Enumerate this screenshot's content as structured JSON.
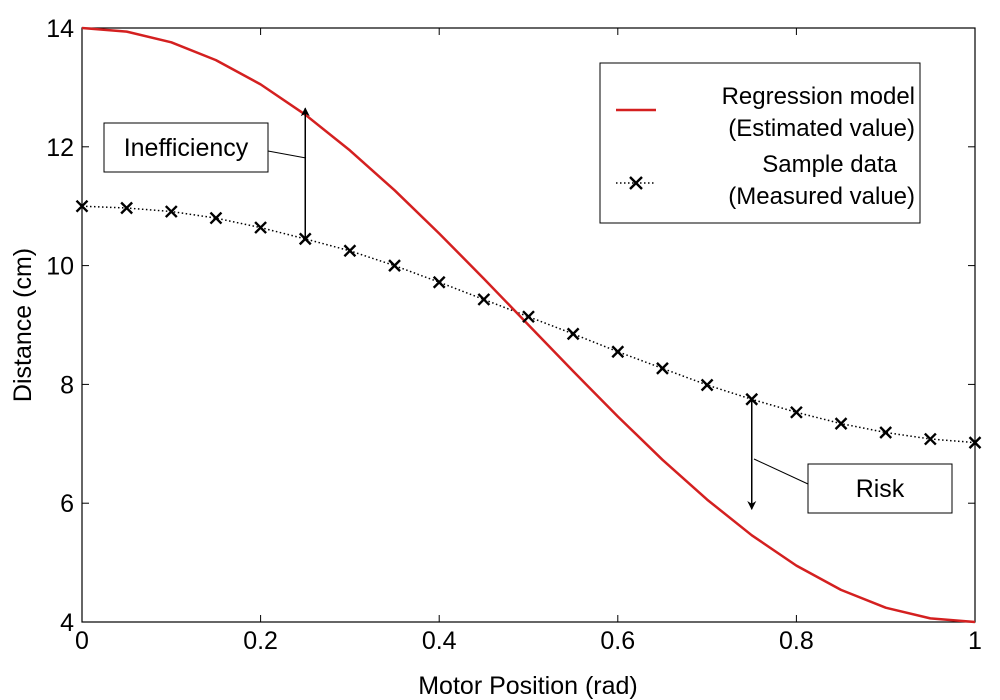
{
  "colors": {
    "regression": "#d42020",
    "sample": "#000000",
    "axis": "#000000",
    "background": "#ffffff"
  },
  "chart_data": {
    "type": "line",
    "xlabel": "Motor Position (rad)",
    "ylabel": "Distance (cm)",
    "xlim": [
      0,
      1
    ],
    "ylim": [
      4,
      14
    ],
    "x_ticks": [
      "0",
      "0.2",
      "0.4",
      "0.6",
      "0.8",
      "1"
    ],
    "y_ticks": [
      "4",
      "6",
      "8",
      "10",
      "12",
      "14"
    ],
    "grid": false,
    "legend_position": "top-right",
    "series": [
      {
        "name": "Regression model",
        "name_line2": "(Estimated value)",
        "style": "solid-line",
        "x": [
          0,
          0.05,
          0.1,
          0.15,
          0.2,
          0.25,
          0.3,
          0.35,
          0.4,
          0.45,
          0.5,
          0.55,
          0.6,
          0.65,
          0.7,
          0.75,
          0.8,
          0.85,
          0.9,
          0.95,
          1
        ],
        "values": [
          14.0,
          13.94,
          13.76,
          13.46,
          13.05,
          12.54,
          11.94,
          11.27,
          10.54,
          9.78,
          9.0,
          8.22,
          7.46,
          6.73,
          6.06,
          5.46,
          4.95,
          4.54,
          4.24,
          4.06,
          4.0
        ]
      },
      {
        "name": "Sample data",
        "name_line2": "(Measured value)",
        "style": "dotted-line-x-markers",
        "x": [
          0,
          0.05,
          0.1,
          0.15,
          0.2,
          0.25,
          0.3,
          0.35,
          0.4,
          0.45,
          0.5,
          0.55,
          0.6,
          0.65,
          0.7,
          0.75,
          0.8,
          0.85,
          0.9,
          0.95,
          1
        ],
        "values": [
          11.0,
          10.97,
          10.91,
          10.8,
          10.64,
          10.45,
          10.25,
          10.0,
          9.72,
          9.43,
          9.14,
          8.85,
          8.55,
          8.27,
          7.99,
          7.75,
          7.53,
          7.34,
          7.19,
          7.08,
          7.02
        ]
      }
    ],
    "annotations": [
      {
        "label": "Inefficiency",
        "x": 0.25,
        "from": 10.45,
        "to": 12.65,
        "arrow": "up"
      },
      {
        "label": "Risk",
        "x": 0.75,
        "from": 7.75,
        "to": 5.9,
        "arrow": "down"
      }
    ]
  }
}
